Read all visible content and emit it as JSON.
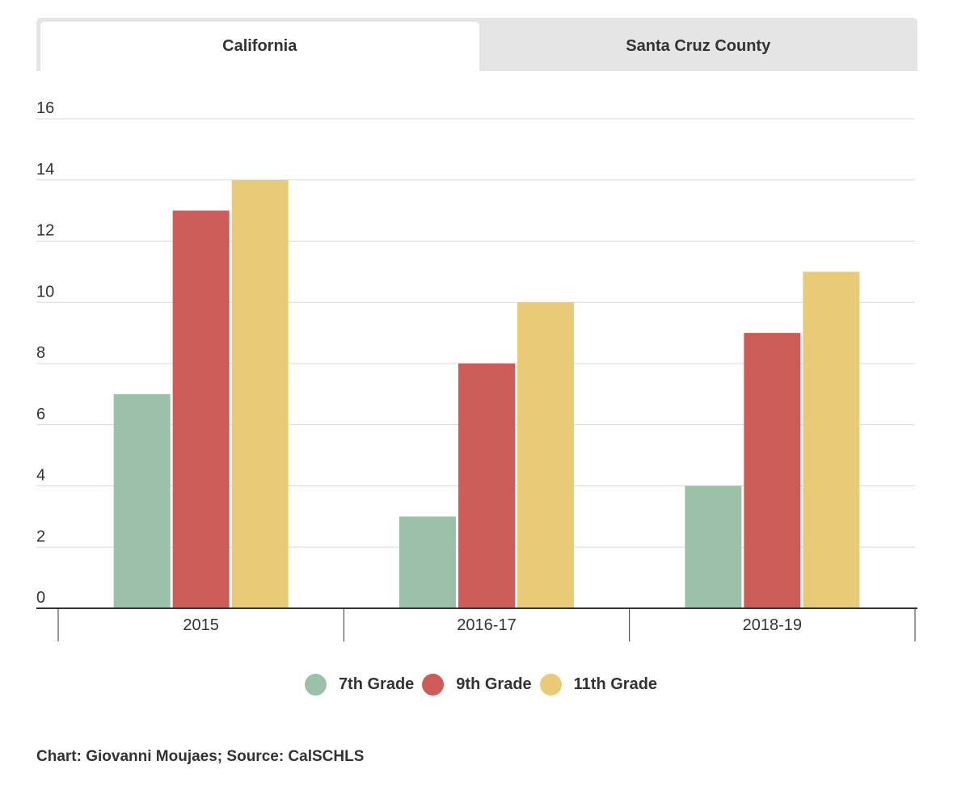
{
  "tabs": [
    {
      "label": "California",
      "active": true
    },
    {
      "label": "Santa Cruz County",
      "active": false
    }
  ],
  "chart_data": {
    "type": "bar",
    "title": "",
    "xlabel": "",
    "ylabel": "",
    "categories": [
      "2015",
      "2016-17",
      "2018-19"
    ],
    "series": [
      {
        "name": "7th Grade",
        "color": "#9bc2a8",
        "values": [
          7,
          3,
          4
        ]
      },
      {
        "name": "9th Grade",
        "color": "#cd5b58",
        "values": [
          13,
          8,
          9
        ]
      },
      {
        "name": "11th Grade",
        "color": "#e9cb77",
        "values": [
          14,
          10,
          11
        ]
      }
    ],
    "ylim": [
      0,
      16
    ],
    "yticks": [
      0,
      2,
      4,
      6,
      8,
      10,
      12,
      14,
      16
    ],
    "grid": true,
    "legend": "bottom-center"
  },
  "footer": {
    "credit": "Chart: Giovanni Moujaes; Source: CalSCHLS"
  }
}
